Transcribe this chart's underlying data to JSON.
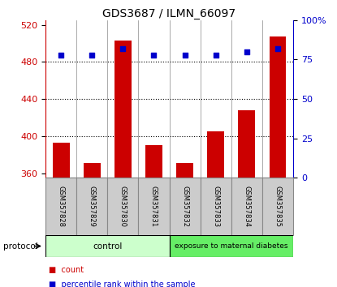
{
  "title": "GDS3687 / ILMN_66097",
  "samples": [
    "GSM357828",
    "GSM357829",
    "GSM357830",
    "GSM357831",
    "GSM357832",
    "GSM357833",
    "GSM357834",
    "GSM357835"
  ],
  "counts": [
    393,
    371,
    503,
    390,
    371,
    405,
    428,
    507
  ],
  "percentile_ranks": [
    78,
    78,
    82,
    78,
    78,
    78,
    80,
    82
  ],
  "ylim_left": [
    355,
    525
  ],
  "yticks_left": [
    360,
    400,
    440,
    480,
    520
  ],
  "ylim_right": [
    0,
    100
  ],
  "yticks_right": [
    0,
    25,
    50,
    75,
    100
  ],
  "yticklabels_right": [
    "0",
    "25",
    "50",
    "75",
    "100%"
  ],
  "bar_color": "#cc0000",
  "dot_color": "#0000cc",
  "left_tick_color": "#cc0000",
  "right_tick_color": "#0000cc",
  "grid_yticks": [
    400,
    440,
    480
  ],
  "group_labels": [
    "control",
    "exposure to maternal diabetes"
  ],
  "group_ranges": [
    4,
    4
  ],
  "group_colors_light": "#ccffcc",
  "group_colors_dark": "#66ee66",
  "protocol_label": "protocol",
  "legend_entries": [
    "count",
    "percentile rank within the sample"
  ],
  "legend_colors": [
    "#cc0000",
    "#0000cc"
  ],
  "bar_width": 0.55,
  "label_area_color": "#cccccc",
  "label_area_border": "#888888",
  "n_samples": 8
}
